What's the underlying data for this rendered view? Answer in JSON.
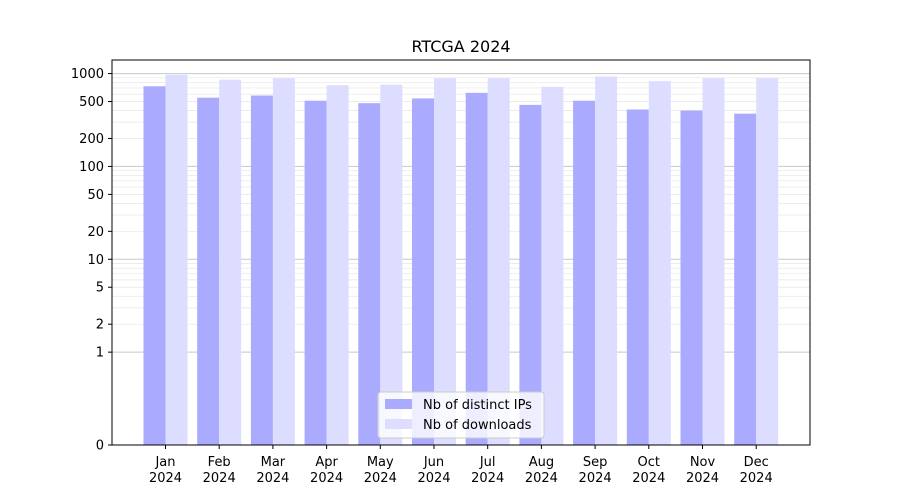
{
  "chart_data": {
    "type": "bar",
    "title": "RTCGA 2024",
    "xlabel": "",
    "ylabel": "",
    "yscale": "symlog",
    "ylim": [
      0,
      1400
    ],
    "y_ticks": [
      {
        "value": 0,
        "label": "0"
      },
      {
        "value": 1,
        "label": "1"
      },
      {
        "value": 2,
        "label": "2"
      },
      {
        "value": 5,
        "label": "5"
      },
      {
        "value": 10,
        "label": "10"
      },
      {
        "value": 20,
        "label": "20"
      },
      {
        "value": 50,
        "label": "50"
      },
      {
        "value": 100,
        "label": "100"
      },
      {
        "value": 200,
        "label": "200"
      },
      {
        "value": 500,
        "label": "500"
      },
      {
        "value": 1000,
        "label": "1000"
      }
    ],
    "categories": [
      [
        "Jan",
        "2024"
      ],
      [
        "Feb",
        "2024"
      ],
      [
        "Mar",
        "2024"
      ],
      [
        "Apr",
        "2024"
      ],
      [
        "May",
        "2024"
      ],
      [
        "Jun",
        "2024"
      ],
      [
        "Jul",
        "2024"
      ],
      [
        "Aug",
        "2024"
      ],
      [
        "Sep",
        "2024"
      ],
      [
        "Oct",
        "2024"
      ],
      [
        "Nov",
        "2024"
      ],
      [
        "Dec",
        "2024"
      ]
    ],
    "series": [
      {
        "name": "Nb of distinct IPs",
        "color": "#aaaaff",
        "values": [
          730,
          550,
          580,
          510,
          480,
          540,
          620,
          460,
          510,
          410,
          400,
          370
        ]
      },
      {
        "name": "Nb of downloads",
        "color": "#ddddff",
        "values": [
          970,
          860,
          890,
          750,
          760,
          890,
          890,
          720,
          930,
          830,
          890,
          890
        ]
      }
    ],
    "grid": true,
    "legend_position": "bottom-center"
  }
}
